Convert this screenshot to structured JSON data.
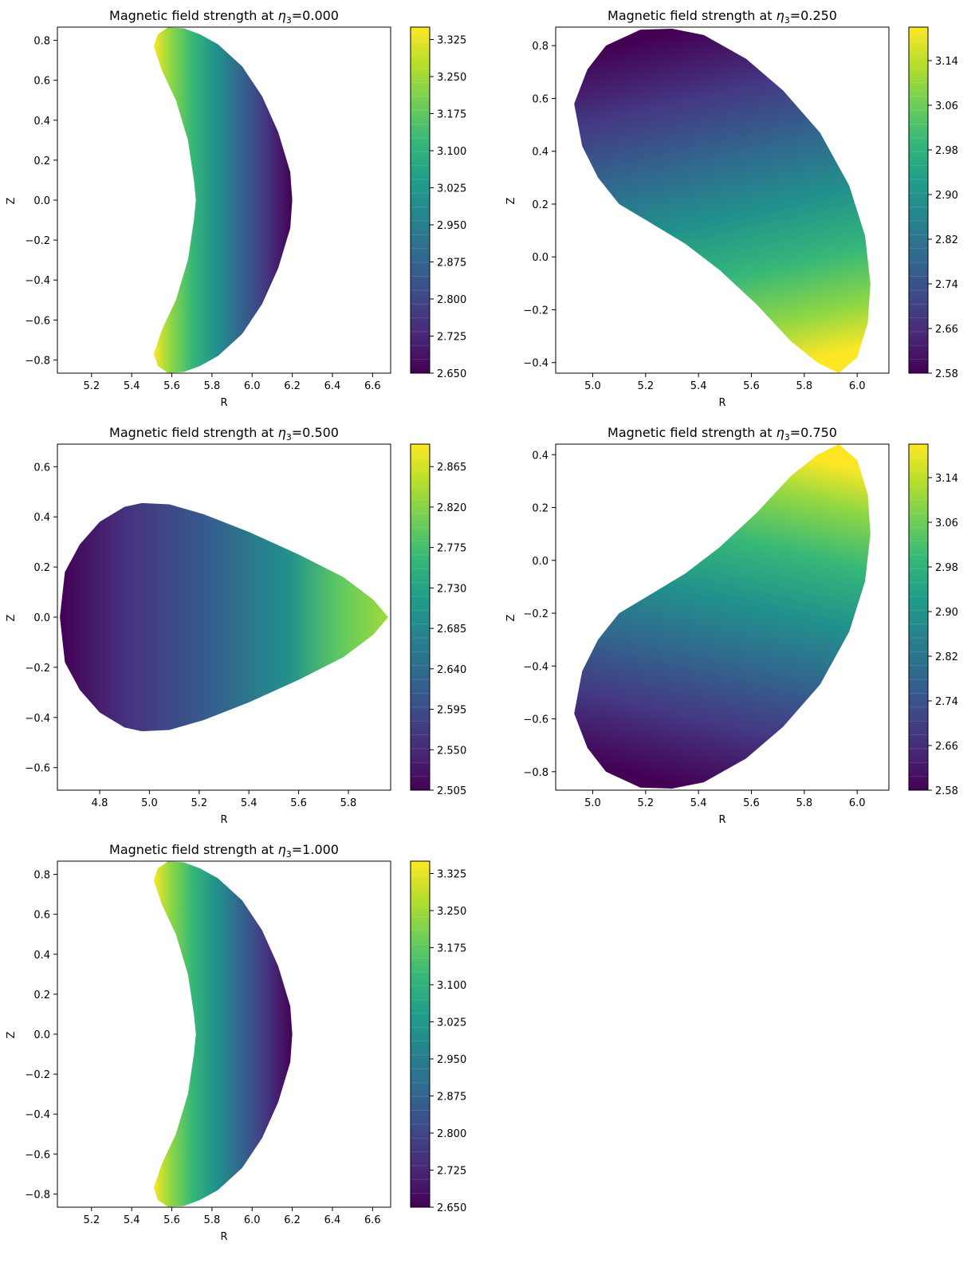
{
  "figure": {
    "subplots": [
      {
        "title_prefix": "Magnetic field strength at ",
        "eta_symbol": "η",
        "eta_subscript": "3",
        "eta_value": "=0.000",
        "xlabel": "R",
        "ylabel": "Z",
        "colorbar_ticks": [
          "2.650",
          "2.725",
          "2.800",
          "2.875",
          "2.950",
          "3.025",
          "3.100",
          "3.175",
          "3.250",
          "3.325"
        ]
      },
      {
        "title_prefix": "Magnetic field strength at ",
        "eta_symbol": "η",
        "eta_subscript": "3",
        "eta_value": "=0.250",
        "xlabel": "R",
        "ylabel": "Z",
        "colorbar_ticks": [
          "2.58",
          "2.66",
          "2.74",
          "2.82",
          "2.90",
          "2.98",
          "3.06",
          "3.14"
        ]
      },
      {
        "title_prefix": "Magnetic field strength at ",
        "eta_symbol": "η",
        "eta_subscript": "3",
        "eta_value": "=0.500",
        "xlabel": "R",
        "ylabel": "Z",
        "colorbar_ticks": [
          "2.505",
          "2.550",
          "2.595",
          "2.640",
          "2.685",
          "2.730",
          "2.775",
          "2.820",
          "2.865"
        ]
      },
      {
        "title_prefix": "Magnetic field strength at ",
        "eta_symbol": "η",
        "eta_subscript": "3",
        "eta_value": "=0.750",
        "xlabel": "R",
        "ylabel": "Z",
        "colorbar_ticks": [
          "2.58",
          "2.66",
          "2.74",
          "2.82",
          "2.90",
          "2.98",
          "3.06",
          "3.14"
        ]
      },
      {
        "title_prefix": "Magnetic field strength at ",
        "eta_symbol": "η",
        "eta_subscript": "3",
        "eta_value": "=1.000",
        "xlabel": "R",
        "ylabel": "Z",
        "colorbar_ticks": [
          "2.650",
          "2.725",
          "2.800",
          "2.875",
          "2.950",
          "3.025",
          "3.100",
          "3.175",
          "3.250",
          "3.325"
        ]
      }
    ]
  },
  "chart_data": [
    {
      "type": "heatmap",
      "title": "Magnetic field strength at η3=0.000",
      "xlabel": "R",
      "ylabel": "Z",
      "xlim": [
        5.03,
        6.69
      ],
      "ylim": [
        -0.866,
        0.866
      ],
      "xticks": [
        5.2,
        5.4,
        5.6,
        5.8,
        6.0,
        6.2,
        6.4,
        6.6
      ],
      "yticks": [
        -0.8,
        -0.6,
        -0.4,
        -0.2,
        0.0,
        0.2,
        0.4,
        0.6,
        0.8
      ],
      "colorbar": {
        "range": [
          2.65,
          3.35
        ],
        "ticks": [
          2.65,
          2.725,
          2.8,
          2.875,
          2.95,
          3.025,
          3.1,
          3.175,
          3.25,
          3.325
        ],
        "colormap": "viridis"
      },
      "boundary": [
        [
          5.51,
          0.77
        ],
        [
          5.53,
          0.83
        ],
        [
          5.58,
          0.864
        ],
        [
          5.66,
          0.86
        ],
        [
          5.74,
          0.83
        ],
        [
          5.83,
          0.78
        ],
        [
          5.95,
          0.67
        ],
        [
          6.05,
          0.52
        ],
        [
          6.13,
          0.34
        ],
        [
          6.19,
          0.14
        ],
        [
          6.2,
          0.0
        ],
        [
          6.19,
          -0.14
        ],
        [
          6.13,
          -0.34
        ],
        [
          6.05,
          -0.52
        ],
        [
          5.95,
          -0.67
        ],
        [
          5.83,
          -0.78
        ],
        [
          5.74,
          -0.83
        ],
        [
          5.66,
          -0.86
        ],
        [
          5.58,
          -0.864
        ],
        [
          5.53,
          -0.83
        ],
        [
          5.51,
          -0.77
        ],
        [
          5.55,
          -0.65
        ],
        [
          5.62,
          -0.5
        ],
        [
          5.68,
          -0.3
        ],
        [
          5.71,
          -0.1
        ],
        [
          5.72,
          0.0
        ],
        [
          5.71,
          0.1
        ],
        [
          5.68,
          0.3
        ],
        [
          5.62,
          0.5
        ],
        [
          5.55,
          0.65
        ]
      ],
      "field": {
        "high_side": "inboard (small R)",
        "high": 3.34,
        "low_side": "outboard (large R)",
        "low": 2.66
      }
    },
    {
      "type": "heatmap",
      "title": "Magnetic field strength at η3=0.250",
      "xlabel": "R",
      "ylabel": "Z",
      "xlim": [
        4.86,
        6.12
      ],
      "ylim": [
        -0.44,
        0.87
      ],
      "xticks": [
        5.0,
        5.2,
        5.4,
        5.6,
        5.8,
        6.0
      ],
      "yticks": [
        -0.4,
        -0.2,
        0.0,
        0.2,
        0.4,
        0.6,
        0.8
      ],
      "colorbar": {
        "range": [
          2.58,
          3.2
        ],
        "ticks": [
          2.58,
          2.66,
          2.74,
          2.82,
          2.9,
          2.98,
          3.06,
          3.14
        ],
        "colormap": "viridis"
      },
      "boundary": [
        [
          4.93,
          0.58
        ],
        [
          4.98,
          0.71
        ],
        [
          5.05,
          0.8
        ],
        [
          5.18,
          0.86
        ],
        [
          5.3,
          0.864
        ],
        [
          5.42,
          0.84
        ],
        [
          5.58,
          0.75
        ],
        [
          5.72,
          0.63
        ],
        [
          5.86,
          0.47
        ],
        [
          5.97,
          0.27
        ],
        [
          6.03,
          0.08
        ],
        [
          6.05,
          -0.1
        ],
        [
          6.04,
          -0.25
        ],
        [
          6.0,
          -0.38
        ],
        [
          5.93,
          -0.44
        ],
        [
          5.85,
          -0.4
        ],
        [
          5.75,
          -0.32
        ],
        [
          5.62,
          -0.18
        ],
        [
          5.48,
          -0.05
        ],
        [
          5.35,
          0.05
        ],
        [
          5.2,
          0.14
        ],
        [
          5.1,
          0.2
        ],
        [
          5.02,
          0.3
        ],
        [
          4.96,
          0.42
        ]
      ],
      "field": {
        "high_side": "lower edge (R≈5.7, Z≈-0.2)",
        "high": 3.19,
        "low_side": "upper region (R≈5.4, Z≈0.7)",
        "low": 2.59
      }
    },
    {
      "type": "heatmap",
      "title": "Magnetic field strength at η3=0.500",
      "xlabel": "R",
      "ylabel": "Z",
      "xlim": [
        4.63,
        5.97
      ],
      "ylim": [
        -0.69,
        0.69
      ],
      "xticks": [
        4.8,
        5.0,
        5.2,
        5.4,
        5.6,
        5.8
      ],
      "yticks": [
        -0.6,
        -0.4,
        -0.2,
        0.0,
        0.2,
        0.4,
        0.6
      ],
      "colorbar": {
        "range": [
          2.505,
          2.89
        ],
        "ticks": [
          2.505,
          2.55,
          2.595,
          2.64,
          2.685,
          2.73,
          2.775,
          2.82,
          2.865
        ],
        "colormap": "viridis"
      },
      "boundary": [
        [
          4.64,
          0.0
        ],
        [
          4.66,
          0.18
        ],
        [
          4.72,
          0.29
        ],
        [
          4.8,
          0.38
        ],
        [
          4.9,
          0.44
        ],
        [
          4.97,
          0.455
        ],
        [
          5.08,
          0.45
        ],
        [
          5.22,
          0.41
        ],
        [
          5.4,
          0.34
        ],
        [
          5.6,
          0.25
        ],
        [
          5.78,
          0.16
        ],
        [
          5.9,
          0.07
        ],
        [
          5.96,
          0.0
        ],
        [
          5.9,
          -0.07
        ],
        [
          5.78,
          -0.16
        ],
        [
          5.6,
          -0.25
        ],
        [
          5.4,
          -0.34
        ],
        [
          5.22,
          -0.41
        ],
        [
          5.08,
          -0.45
        ],
        [
          4.97,
          -0.455
        ],
        [
          4.9,
          -0.44
        ],
        [
          4.8,
          -0.38
        ],
        [
          4.72,
          -0.29
        ],
        [
          4.66,
          -0.18
        ]
      ],
      "field": {
        "high_side": "upper/lower outboard edges (R≈5.6, |Z|≈0.2)",
        "high": 2.88,
        "low_side": "inboard (R≈4.7)",
        "low": 2.51
      }
    },
    {
      "type": "heatmap",
      "title": "Magnetic field strength at η3=0.750",
      "xlabel": "R",
      "ylabel": "Z",
      "xlim": [
        4.86,
        6.12
      ],
      "ylim": [
        -0.87,
        0.44
      ],
      "xticks": [
        5.0,
        5.2,
        5.4,
        5.6,
        5.8,
        6.0
      ],
      "yticks": [
        -0.8,
        -0.6,
        -0.4,
        -0.2,
        0.0,
        0.2,
        0.4
      ],
      "colorbar": {
        "range": [
          2.58,
          3.2
        ],
        "ticks": [
          2.58,
          2.66,
          2.74,
          2.82,
          2.9,
          2.98,
          3.06,
          3.14
        ],
        "colormap": "viridis"
      },
      "boundary": [
        [
          4.93,
          -0.58
        ],
        [
          4.98,
          -0.71
        ],
        [
          5.05,
          -0.8
        ],
        [
          5.18,
          -0.86
        ],
        [
          5.3,
          -0.864
        ],
        [
          5.42,
          -0.84
        ],
        [
          5.58,
          -0.75
        ],
        [
          5.72,
          -0.63
        ],
        [
          5.86,
          -0.47
        ],
        [
          5.97,
          -0.27
        ],
        [
          6.03,
          -0.08
        ],
        [
          6.05,
          0.1
        ],
        [
          6.04,
          0.25
        ],
        [
          6.0,
          0.38
        ],
        [
          5.93,
          0.44
        ],
        [
          5.85,
          0.4
        ],
        [
          5.75,
          0.32
        ],
        [
          5.62,
          0.18
        ],
        [
          5.48,
          0.05
        ],
        [
          5.35,
          -0.05
        ],
        [
          5.2,
          -0.14
        ],
        [
          5.1,
          -0.2
        ],
        [
          5.02,
          -0.3
        ],
        [
          4.96,
          -0.42
        ]
      ],
      "field": {
        "high_side": "upper edge (R≈5.7, Z≈0.2)",
        "high": 3.19,
        "low_side": "lower region (R≈5.4, Z≈-0.7)",
        "low": 2.59
      }
    },
    {
      "type": "heatmap",
      "title": "Magnetic field strength at η3=1.000",
      "xlabel": "R",
      "ylabel": "Z",
      "xlim": [
        5.03,
        6.69
      ],
      "ylim": [
        -0.866,
        0.866
      ],
      "xticks": [
        5.2,
        5.4,
        5.6,
        5.8,
        6.0,
        6.2,
        6.4,
        6.6
      ],
      "yticks": [
        -0.8,
        -0.6,
        -0.4,
        -0.2,
        0.0,
        0.2,
        0.4,
        0.6,
        0.8
      ],
      "colorbar": {
        "range": [
          2.65,
          3.35
        ],
        "ticks": [
          2.65,
          2.725,
          2.8,
          2.875,
          2.95,
          3.025,
          3.1,
          3.175,
          3.25,
          3.325
        ],
        "colormap": "viridis"
      },
      "boundary": [
        [
          5.51,
          0.77
        ],
        [
          5.53,
          0.83
        ],
        [
          5.58,
          0.864
        ],
        [
          5.66,
          0.86
        ],
        [
          5.74,
          0.83
        ],
        [
          5.83,
          0.78
        ],
        [
          5.95,
          0.67
        ],
        [
          6.05,
          0.52
        ],
        [
          6.13,
          0.34
        ],
        [
          6.19,
          0.14
        ],
        [
          6.2,
          0.0
        ],
        [
          6.19,
          -0.14
        ],
        [
          6.13,
          -0.34
        ],
        [
          6.05,
          -0.52
        ],
        [
          5.95,
          -0.67
        ],
        [
          5.83,
          -0.78
        ],
        [
          5.74,
          -0.83
        ],
        [
          5.66,
          -0.86
        ],
        [
          5.58,
          -0.864
        ],
        [
          5.53,
          -0.83
        ],
        [
          5.51,
          -0.77
        ],
        [
          5.55,
          -0.65
        ],
        [
          5.62,
          -0.5
        ],
        [
          5.68,
          -0.3
        ],
        [
          5.71,
          -0.1
        ],
        [
          5.72,
          0.0
        ],
        [
          5.71,
          0.1
        ],
        [
          5.68,
          0.3
        ],
        [
          5.62,
          0.5
        ],
        [
          5.55,
          0.65
        ]
      ],
      "field": {
        "high_side": "inboard (small R)",
        "high": 3.34,
        "low_side": "outboard (large R)",
        "low": 2.66
      }
    }
  ]
}
